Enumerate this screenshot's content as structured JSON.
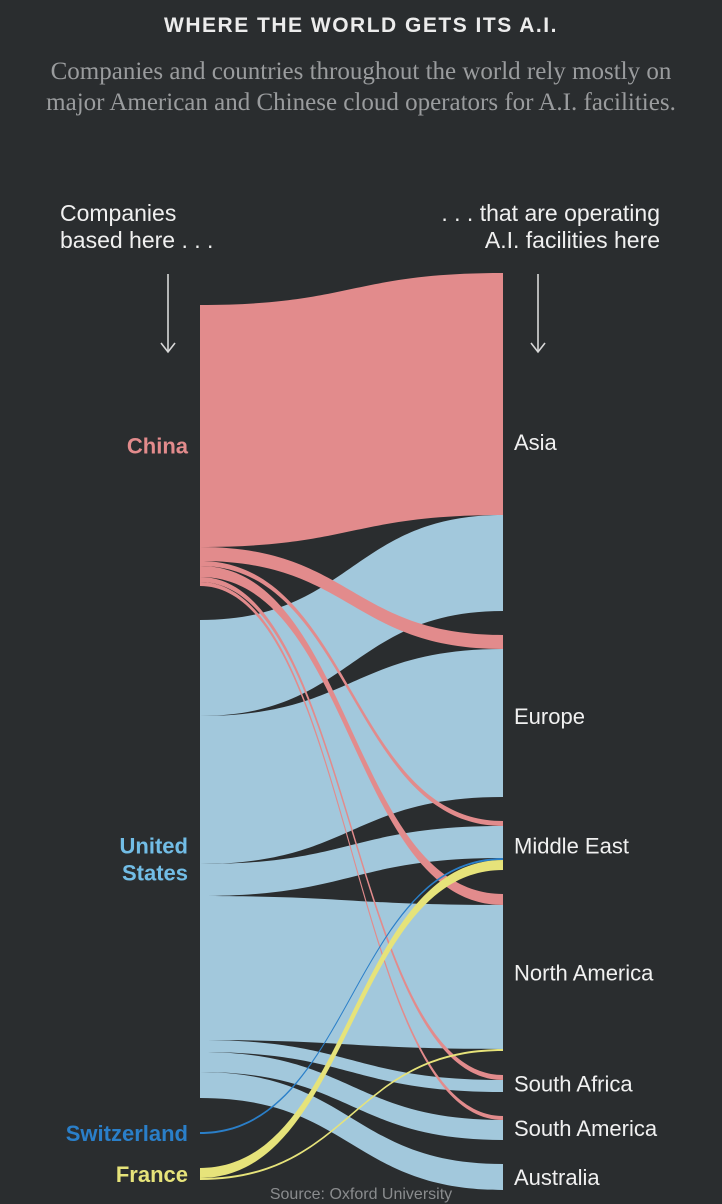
{
  "header": {
    "title": "WHERE THE WORLD GETS ITS A.I.",
    "subtitle": "Companies and countries throughout the world rely mostly on major American and Chinese cloud operators for A.I. facilities."
  },
  "columns": {
    "left_label": "Companies based here . . .",
    "right_label": ". . . that are operating A.I. facilities here"
  },
  "footer": {
    "source": "Source: Oxford University"
  },
  "chart_data": {
    "type": "sankey",
    "sources": [
      {
        "name": "China",
        "color": "#e28b8c"
      },
      {
        "name": "United States",
        "color": "#a2c8dc"
      },
      {
        "name": "Switzerland",
        "color": "#2a7fc9"
      },
      {
        "name": "France",
        "color": "#e6e37a"
      }
    ],
    "source_labels": [
      {
        "node": "China",
        "lines": [
          "China"
        ],
        "color": "#e28b8c"
      },
      {
        "node": "United States",
        "lines": [
          "United",
          "States"
        ],
        "color": "#72bde6"
      },
      {
        "node": "Switzerland",
        "lines": [
          "Switzerland"
        ],
        "color": "#2a7fc9"
      },
      {
        "node": "France",
        "lines": [
          "France"
        ],
        "color": "#e6e37a"
      }
    ],
    "targets": [
      {
        "name": "Asia"
      },
      {
        "name": "Europe"
      },
      {
        "name": "Middle East"
      },
      {
        "name": "North America"
      },
      {
        "name": "South Africa"
      },
      {
        "name": "South America"
      },
      {
        "name": "Australia"
      }
    ],
    "flows": [
      {
        "source": "China",
        "target": "Asia",
        "value": 242
      },
      {
        "source": "China",
        "target": "Europe",
        "value": 14
      },
      {
        "source": "China",
        "target": "Middle East",
        "value": 5
      },
      {
        "source": "China",
        "target": "North America",
        "value": 11
      },
      {
        "source": "China",
        "target": "South Africa",
        "value": 5
      },
      {
        "source": "China",
        "target": "South America",
        "value": 4
      },
      {
        "source": "United States",
        "target": "Asia",
        "value": 96
      },
      {
        "source": "United States",
        "target": "Europe",
        "value": 148
      },
      {
        "source": "United States",
        "target": "Middle East",
        "value": 32
      },
      {
        "source": "United States",
        "target": "North America",
        "value": 144
      },
      {
        "source": "United States",
        "target": "South Africa",
        "value": 12
      },
      {
        "source": "United States",
        "target": "South America",
        "value": 20
      },
      {
        "source": "United States",
        "target": "Australia",
        "value": 26
      },
      {
        "source": "Switzerland",
        "target": "Middle East",
        "value": 2
      },
      {
        "source": "France",
        "target": "Middle East",
        "value": 10
      },
      {
        "source": "France",
        "target": "North America",
        "value": 2
      }
    ]
  }
}
